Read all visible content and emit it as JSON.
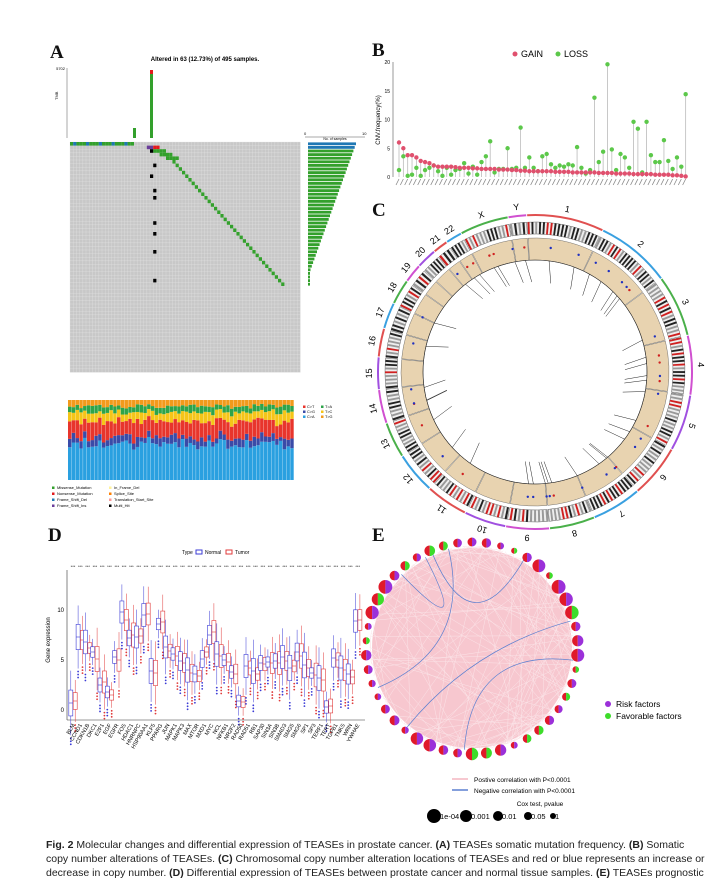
{
  "panels": {
    "a": "A",
    "b": "B",
    "c": "C",
    "d": "D",
    "e": "E"
  },
  "panel_a": {
    "title": "Altered in 63 (12.73%) of 495 samples.",
    "tmb_axis_max": "5702",
    "tmb_axis_label": "TMB",
    "side_axis": [
      "0",
      "10"
    ],
    "side_axis_label": "No. of samples",
    "snv_legend": [
      "C>T",
      "C>G",
      "C>A",
      "T>A",
      "T>C",
      "T>G"
    ],
    "snv_colors": [
      "#e8352c",
      "#3a4ba8",
      "#2aa0e0",
      "#2ea44a",
      "#f5c518",
      "#f29a1c"
    ],
    "variant_legend": [
      "Missense_Mutation",
      "Nonsense_Mutation",
      "Frame_Shift_Del",
      "Frame_Shift_Ins",
      "In_Frame_Del",
      "Splice_Site",
      "Translation_Start_Site",
      "Multi_Hit"
    ],
    "variant_colors": [
      "#33a02c",
      "#e31a1c",
      "#1f78b4",
      "#6a3d9a",
      "#fff29a",
      "#ff7f00",
      "#fb9a99",
      "#000000"
    ]
  },
  "chart_data": [
    {
      "type": "scatter",
      "title": "",
      "ylabel": "CNV.frequency(%)",
      "ylim": [
        0,
        20
      ],
      "yticks": [
        "0",
        "5",
        "10",
        "15",
        "20"
      ],
      "legend": [
        "GAIN",
        "LOSS"
      ],
      "legend_position": "top",
      "colors": {
        "gain": "#e0506e",
        "loss": "#5cc84a"
      },
      "series": [
        {
          "name": "GAIN",
          "values": [
            6,
            5,
            3.8,
            3.8,
            3.4,
            2.8,
            2.6,
            2.4,
            2,
            1.8,
            1.8,
            1.8,
            1.8,
            1.7,
            1.6,
            1.6,
            1.6,
            1.5,
            1.5,
            1.4,
            1.4,
            1.4,
            1.4,
            1.3,
            1.3,
            1.3,
            1.2,
            1.2,
            1.1,
            1.1,
            1,
            1,
            1,
            1,
            1,
            1,
            0.9,
            0.9,
            0.9,
            0.9,
            0.8,
            0.8,
            0.8,
            0.8,
            0.8,
            0.8,
            0.7,
            0.7,
            0.7,
            0.7,
            0.6,
            0.6,
            0.6,
            0.6,
            0.5,
            0.5,
            0.5,
            0.5,
            0.5,
            0.4,
            0.4,
            0.4,
            0.4,
            0.3,
            0.3,
            0.2,
            0.1
          ]
        },
        {
          "name": "LOSS",
          "values": [
            1.2,
            3.6,
            0.2,
            0.4,
            1.6,
            0.2,
            1.2,
            1.6,
            2,
            1,
            0.2,
            1.6,
            0.4,
            1.2,
            1.4,
            2.4,
            0.6,
            1.8,
            0.4,
            2.6,
            3.6,
            6.2,
            0.8,
            1.4,
            1.4,
            5,
            1.4,
            1.6,
            8.6,
            1.6,
            3.4,
            1.6,
            1,
            3.6,
            4,
            2.2,
            1.6,
            2,
            1.8,
            2.2,
            2,
            5.2,
            1.6,
            0.6,
            1.2,
            13.8,
            2.6,
            4.4,
            19.6,
            4.8,
            1.2,
            4,
            3.4,
            1.6,
            9.6,
            8.4,
            0.8,
            9.6,
            3.8,
            2.6,
            2.6,
            6.4,
            2.8,
            1.4,
            3.4,
            1.8,
            14.4
          ]
        }
      ]
    },
    {
      "type": "box",
      "legend_title": "Type",
      "legend": [
        "Normal",
        "Tumor"
      ],
      "legend_position": "top",
      "colors": {
        "normal": "#3b3bd6",
        "tumor": "#e03a3a"
      },
      "ylabel": "Gene expression",
      "ylim": [
        -1,
        14
      ],
      "yticks": [
        "0",
        "5",
        "10"
      ],
      "categories": [
        "BLM",
        "CCND1",
        "CDKN1B",
        "DKC1",
        "E2F1",
        "EGF",
        "EGFR",
        "FOS",
        "HDAC1",
        "HNRNPC",
        "HSP90AA1",
        "KLF5",
        "PPARG",
        "JUN",
        "MAPK1",
        "MAPK3",
        "MAX",
        "MTOR",
        "MXD1",
        "MYC",
        "NCL",
        "NFKB1",
        "NR2F2",
        "RAD50",
        "RAD51",
        "RB1",
        "SAP30",
        "SIN3A",
        "SIN3B",
        "SMAD3",
        "SMG5",
        "SMG6",
        "SP1",
        "SP3",
        "TERF1",
        "TERT",
        "TGFB1",
        "TNKS",
        "WRN",
        "YWHAE"
      ],
      "series": [
        {
          "name": "Normal",
          "values": [
            0.7,
            7.3,
            6.8,
            5.8,
            2.5,
            1.8,
            5.3,
            9.8,
            7.2,
            7.3,
            9.5,
            3.9,
            8.6,
            6.3,
            5.6,
            4.9,
            4,
            3.6,
            5.1,
            7.5,
            5.6,
            5,
            3.8,
            0.9,
            4.4,
            3.9,
            4.7,
            4.8,
            4.9,
            5.3,
            4.2,
            5.8,
            4.5,
            3.7,
            3.2,
            0.3,
            5.2,
            4.2,
            3.6,
            8.9
          ]
        },
        {
          "name": "Tumor",
          "values": [
            0.9,
            7,
            6.2,
            5.1,
            2.8,
            1.5,
            5,
            9,
            7.5,
            7.4,
            9.6,
            3.7,
            8.8,
            5.9,
            5.4,
            4.7,
            3.7,
            3.4,
            5.8,
            7.8,
            5.4,
            4.8,
            3.6,
            0.8,
            4.2,
            3.6,
            4.6,
            4.7,
            4.7,
            4.9,
            4.4,
            5.4,
            4.2,
            3.5,
            3,
            0.4,
            5,
            4,
            3.3,
            9
          ]
        }
      ]
    }
  ],
  "panel_c": {
    "chromosomes": [
      "1",
      "2",
      "3",
      "4",
      "5",
      "6",
      "7",
      "8",
      "9",
      "10",
      "11",
      "12",
      "13",
      "14",
      "15",
      "16",
      "17",
      "18",
      "19",
      "20",
      "21",
      "22",
      "X",
      "Y"
    ]
  },
  "panel_e": {
    "legend_risk": "Risk factors",
    "legend_favorable": "Favorable factors",
    "risk_color": "#9b30d9",
    "favorable_color": "#3ddc2a",
    "node_color": "#e01a2a",
    "positive_line": "Postive correlation with P<0.0001",
    "negative_line": "Negative correlation with P<0.0001",
    "cox_title": "Cox test, pvalue",
    "cox_levels": [
      "1e-04",
      "0.001",
      "0.01",
      "0.05",
      "1"
    ]
  },
  "caption": {
    "fig": "Fig. 2",
    "text": "Molecular changes and differential expression of TEASEs in prostate cancer.",
    "a": "(A)",
    "a_text": "TEASEs somatic mutation frequency.",
    "b": "(B)",
    "b_text": "Somatic copy number alterations of TEASEs.",
    "c": "(C)",
    "c_text": "Chromosomal copy number alteration locations of TEASEs and red or blue represents an increase or decrease in copy number.",
    "d": "(D)",
    "d_text": "Differential expression of TEASEs between prostate cancer and normal tissue samples.",
    "e": "(E)",
    "e_text": "TEASEs prognostic network diagram"
  }
}
